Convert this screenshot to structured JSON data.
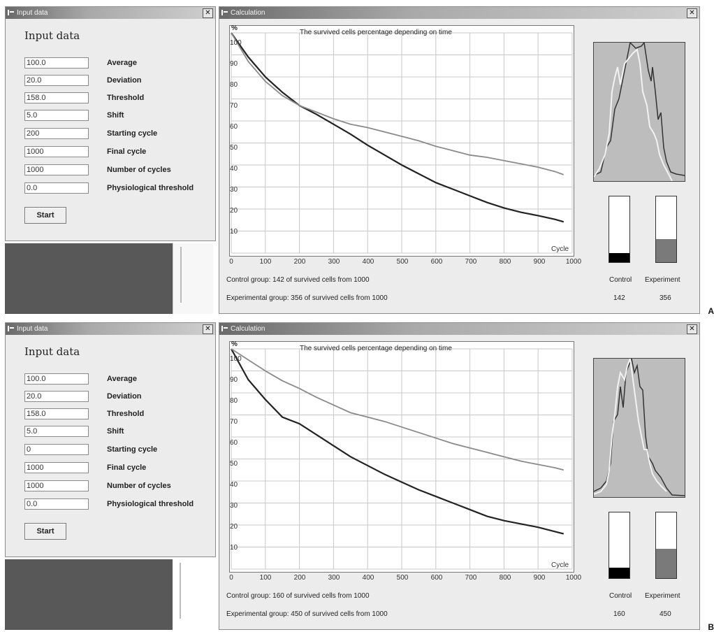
{
  "panels": [
    {
      "letter": "A",
      "input_window": {
        "title": "Input data",
        "heading": "Input data",
        "fields": [
          {
            "value": "100.0",
            "label": "Average"
          },
          {
            "value": "20.0",
            "label": "Deviation"
          },
          {
            "value": "158.0",
            "label": "Threshold"
          },
          {
            "value": "5.0",
            "label": "Shift"
          },
          {
            "value": "200",
            "label": "Starting cycle"
          },
          {
            "value": "1000",
            "label": "Final cycle"
          },
          {
            "value": "1000",
            "label": "Number of cycles"
          },
          {
            "value": "0.0",
            "label": "Physiological threshold"
          }
        ],
        "start_label": "Start"
      },
      "calc_window": {
        "title": "Calculation",
        "control_summary": "Control group: 142 of survived cells from 1000",
        "experimental_summary": "Experimental group: 356 of survived cells from 1000",
        "control_label": "Control",
        "experiment_label": "Experiment",
        "control_count": "142",
        "experiment_count": "356"
      },
      "chart_data": {
        "type": "line",
        "title": "The survived cells percentage depending on time",
        "ylabel": "%",
        "xlabel": "Cycle",
        "xlim": [
          0,
          1000
        ],
        "ylim": [
          0,
          100
        ],
        "x_ticks": [
          "0",
          "100",
          "200",
          "300",
          "400",
          "500",
          "600",
          "700",
          "800",
          "900",
          "1000"
        ],
        "y_ticks": [
          "100",
          "90",
          "80",
          "70",
          "60",
          "50",
          "40",
          "30",
          "20",
          "10"
        ],
        "grid": true,
        "series": [
          {
            "color": "#222222",
            "x": [
              0,
              50,
              100,
              150,
              200,
              250,
              300,
              350,
              400,
              450,
              500,
              550,
              600,
              650,
              700,
              750,
              800,
              850,
              900,
              950,
              975
            ],
            "y": [
              100,
              89,
              80,
              73,
              67,
              63,
              58.5,
              54,
              49,
              44.5,
              40,
              36,
              32,
              29,
              26,
              23,
              20.5,
              18.5,
              17,
              15.3,
              14.2
            ]
          },
          {
            "color": "#8a8a8a",
            "x": [
              0,
              50,
              100,
              150,
              200,
              250,
              300,
              350,
              400,
              450,
              500,
              550,
              600,
              650,
              700,
              750,
              800,
              850,
              900,
              950,
              975
            ],
            "y": [
              100,
              87,
              78,
              71.5,
              67,
              64,
              61,
              58.5,
              57,
              55,
              53,
              51,
              48.5,
              46.5,
              44.5,
              43.5,
              42,
              40.5,
              39,
              37,
              35.6
            ]
          }
        ]
      },
      "bars": {
        "control": 0.142,
        "experiment": 0.356,
        "control_color": "#000000",
        "experiment_color": "#7a7a7a"
      }
    },
    {
      "letter": "B",
      "input_window": {
        "title": "Input data",
        "heading": "Input data",
        "fields": [
          {
            "value": "100.0",
            "label": "Average"
          },
          {
            "value": "20.0",
            "label": "Deviation"
          },
          {
            "value": "158.0",
            "label": "Threshold"
          },
          {
            "value": "5.0",
            "label": "Shift"
          },
          {
            "value": "0",
            "label": "Starting cycle"
          },
          {
            "value": "1000",
            "label": "Final cycle"
          },
          {
            "value": "1000",
            "label": "Number of cycles"
          },
          {
            "value": "0.0",
            "label": "Physiological threshold"
          }
        ],
        "start_label": "Start"
      },
      "calc_window": {
        "title": "Calculation",
        "control_summary": "Control group: 160 of survived cells from 1000",
        "experimental_summary": "Experimental group: 450 of survived cells from 1000",
        "control_label": "Control",
        "experiment_label": "Experiment",
        "control_count": "160",
        "experiment_count": "450"
      },
      "chart_data": {
        "type": "line",
        "title": "The survived cells percentage depending on time",
        "ylabel": "%",
        "xlabel": "Cycle",
        "xlim": [
          0,
          1000
        ],
        "ylim": [
          0,
          100
        ],
        "x_ticks": [
          "0",
          "100",
          "200",
          "300",
          "400",
          "500",
          "600",
          "700",
          "800",
          "900",
          "1000"
        ],
        "y_ticks": [
          "100",
          "90",
          "80",
          "70",
          "60",
          "50",
          "40",
          "30",
          "20",
          "10"
        ],
        "grid": true,
        "series": [
          {
            "color": "#222222",
            "x": [
              0,
              50,
              100,
              150,
              200,
              250,
              300,
              350,
              400,
              450,
              500,
              550,
              600,
              650,
              700,
              750,
              800,
              850,
              900,
              950,
              975
            ],
            "y": [
              100,
              86,
              77,
              69,
              66,
              61,
              56,
              51,
              47,
              43,
              39.5,
              36,
              33,
              30,
              27,
              24,
              22,
              20.5,
              19,
              17,
              16
            ]
          },
          {
            "color": "#8a8a8a",
            "x": [
              0,
              50,
              100,
              150,
              200,
              250,
              300,
              350,
              400,
              450,
              500,
              550,
              600,
              650,
              700,
              750,
              800,
              850,
              900,
              950,
              975
            ],
            "y": [
              100,
              95,
              90,
              85.5,
              82,
              78,
              74.5,
              71,
              69,
              67,
              64.5,
              62,
              59.5,
              57,
              55,
              53,
              51,
              49,
              47.5,
              46,
              45
            ]
          }
        ]
      },
      "bars": {
        "control": 0.16,
        "experiment": 0.45,
        "control_color": "#000000",
        "experiment_color": "#7a7a7a"
      }
    }
  ]
}
